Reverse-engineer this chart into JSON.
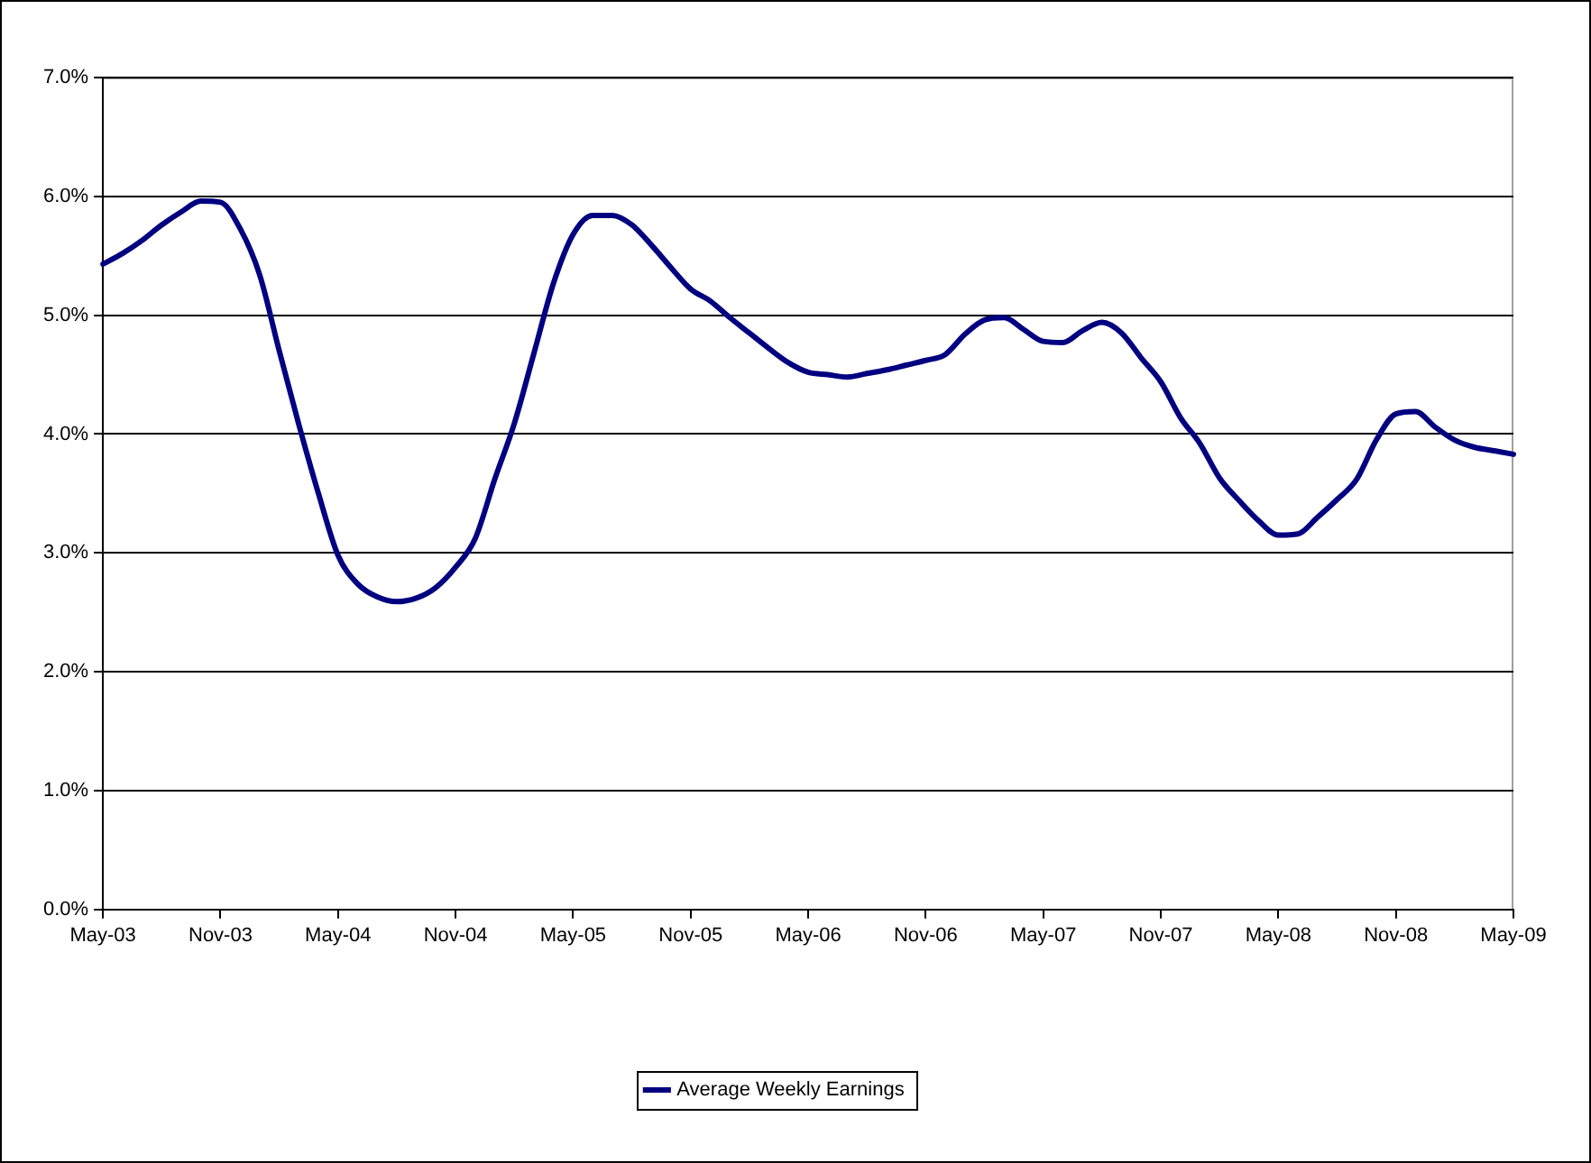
{
  "chart_data": {
    "type": "line",
    "categories": [
      "May-03",
      null,
      null,
      null,
      null,
      null,
      "Nov-03",
      null,
      null,
      null,
      null,
      null,
      "May-04",
      null,
      null,
      null,
      null,
      null,
      "Nov-04",
      null,
      null,
      null,
      null,
      null,
      "May-05",
      null,
      null,
      null,
      null,
      null,
      "Nov-05",
      null,
      null,
      null,
      null,
      null,
      "May-06",
      null,
      null,
      null,
      null,
      null,
      "Nov-06",
      null,
      null,
      null,
      null,
      null,
      "May-07",
      null,
      null,
      null,
      null,
      null,
      "Nov-07",
      null,
      null,
      null,
      null,
      null,
      "May-08",
      null,
      null,
      null,
      null,
      null,
      "Nov-08",
      null,
      null,
      null,
      null,
      null,
      "May-09"
    ],
    "series": [
      {
        "name": "Average Weekly Earnings",
        "color": "#000080",
        "values": [
          5.43,
          5.52,
          5.63,
          5.76,
          5.87,
          5.96,
          5.95,
          5.73,
          5.34,
          4.7,
          4.08,
          3.5,
          2.98,
          2.74,
          2.63,
          2.59,
          2.62,
          2.71,
          2.88,
          3.12,
          3.62,
          4.09,
          4.68,
          5.27,
          5.68,
          5.84,
          5.84,
          5.76,
          5.59,
          5.4,
          5.22,
          5.12,
          4.98,
          4.85,
          4.72,
          4.6,
          4.52,
          4.5,
          4.48,
          4.51,
          4.54,
          4.58,
          4.62,
          4.67,
          4.84,
          4.96,
          4.98,
          4.88,
          4.78,
          4.77,
          4.87,
          4.94,
          4.85,
          4.64,
          4.44,
          4.14,
          3.92,
          3.63,
          3.44,
          3.27,
          3.15,
          3.16,
          3.3,
          3.45,
          3.62,
          3.95,
          4.17,
          4.19,
          4.06,
          3.95,
          3.89,
          3.86,
          3.83
        ]
      }
    ],
    "ylim": [
      0,
      7
    ],
    "yticks": [
      {
        "value": 0,
        "label": "0.0%"
      },
      {
        "value": 1,
        "label": "1.0%"
      },
      {
        "value": 2,
        "label": "2.0%"
      },
      {
        "value": 3,
        "label": "3.0%"
      },
      {
        "value": 4,
        "label": "4.0%"
      },
      {
        "value": 5,
        "label": "5.0%"
      },
      {
        "value": 6,
        "label": "6.0%"
      },
      {
        "value": 7,
        "label": "7.0%"
      }
    ],
    "grid": "y",
    "legend": "bottom",
    "marker": "none",
    "line_style": "solid"
  }
}
